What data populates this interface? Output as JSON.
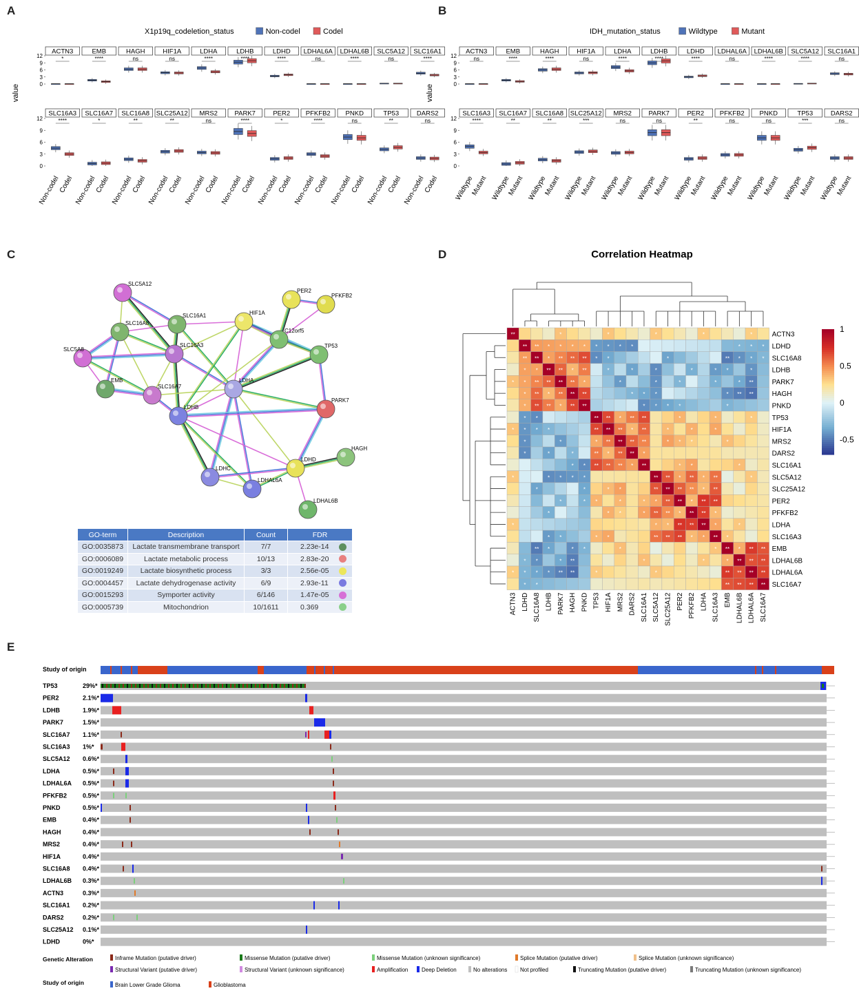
{
  "panel_labels": {
    "a": "A",
    "b": "B",
    "c": "C",
    "d": "D",
    "e": "E"
  },
  "colors": {
    "blue": "#4f73b8",
    "red": "#e05a5a",
    "heat_high": "#b2182b",
    "heat_mid": "#ffffbf",
    "heat_low": "#2c3b92"
  },
  "chart_data": [
    {
      "id": "A",
      "type": "box",
      "legend_title": "X1p19q_codeletion_status",
      "legend": [
        "Non-codel",
        "Codel"
      ],
      "groups": [
        "Non-codel",
        "Codel"
      ],
      "ylabel": "value",
      "ylim": [
        0,
        12
      ],
      "yticks": [
        "0",
        "3",
        "6",
        "9",
        "12"
      ],
      "facets": [
        {
          "gene": "ACTN3",
          "sig": "*",
          "m": [
            0.1,
            0.1
          ]
        },
        {
          "gene": "EMB",
          "sig": "****",
          "m": [
            1.6,
            1.0
          ]
        },
        {
          "gene": "HAGH",
          "sig": "ns",
          "m": [
            6.3,
            6.3
          ]
        },
        {
          "gene": "HIF1A",
          "sig": "ns",
          "m": [
            4.8,
            4.7
          ]
        },
        {
          "gene": "LDHA",
          "sig": "****",
          "m": [
            6.8,
            5.2
          ]
        },
        {
          "gene": "LDHB",
          "sig": "****",
          "m": [
            9.3,
            9.9
          ]
        },
        {
          "gene": "LDHD",
          "sig": "****",
          "m": [
            3.4,
            3.9
          ]
        },
        {
          "gene": "LDHAL6A",
          "sig": "ns",
          "m": [
            0.1,
            0.1
          ]
        },
        {
          "gene": "LDHAL6B",
          "sig": "****",
          "m": [
            0.1,
            0.1
          ]
        },
        {
          "gene": "SLC5A12",
          "sig": "ns",
          "m": [
            0.3,
            0.3
          ]
        },
        {
          "gene": "SLC16A1",
          "sig": "****",
          "m": [
            4.6,
            3.8
          ]
        },
        {
          "gene": "SLC16A3",
          "sig": "****",
          "m": [
            4.5,
            3.0
          ]
        },
        {
          "gene": "SLC16A7",
          "sig": "*",
          "m": [
            0.6,
            0.7
          ]
        },
        {
          "gene": "SLC16A8",
          "sig": "**",
          "m": [
            1.7,
            1.3
          ]
        },
        {
          "gene": "SLC25A12",
          "sig": "**",
          "m": [
            3.6,
            3.8
          ]
        },
        {
          "gene": "MRS2",
          "sig": "ns",
          "m": [
            3.4,
            3.3
          ]
        },
        {
          "gene": "PARK7",
          "sig": "****",
          "m": [
            8.7,
            8.2
          ]
        },
        {
          "gene": "PER2",
          "sig": "*",
          "m": [
            1.8,
            2.0
          ]
        },
        {
          "gene": "PFKFB2",
          "sig": "****",
          "m": [
            3.0,
            2.5
          ]
        },
        {
          "gene": "PNKD",
          "sig": "ns",
          "m": [
            7.3,
            7.1
          ]
        },
        {
          "gene": "TP53",
          "sig": "**",
          "m": [
            4.2,
            4.7
          ]
        },
        {
          "gene": "DARS2",
          "sig": "ns",
          "m": [
            2.0,
            1.9
          ]
        }
      ]
    },
    {
      "id": "B",
      "type": "box",
      "legend_title": "IDH_mutation_status",
      "legend": [
        "Wildtype",
        "Mutant"
      ],
      "groups": [
        "Wildtype",
        "Mutant"
      ],
      "ylabel": "value",
      "ylim": [
        0,
        12
      ],
      "yticks": [
        "0",
        "3",
        "6",
        "9",
        "12"
      ],
      "facets": [
        {
          "gene": "ACTN3",
          "sig": "ns",
          "m": [
            0.1,
            0.1
          ]
        },
        {
          "gene": "EMB",
          "sig": "****",
          "m": [
            1.6,
            1.1
          ]
        },
        {
          "gene": "HAGH",
          "sig": "****",
          "m": [
            6.0,
            6.3
          ]
        },
        {
          "gene": "HIF1A",
          "sig": "ns",
          "m": [
            4.7,
            4.8
          ]
        },
        {
          "gene": "LDHA",
          "sig": "****",
          "m": [
            7.2,
            5.6
          ]
        },
        {
          "gene": "LDHB",
          "sig": "****",
          "m": [
            9.0,
            9.8
          ]
        },
        {
          "gene": "LDHD",
          "sig": "****",
          "m": [
            3.0,
            3.5
          ]
        },
        {
          "gene": "LDHAL6A",
          "sig": "ns",
          "m": [
            0.1,
            0.1
          ]
        },
        {
          "gene": "LDHAL6B",
          "sig": "****",
          "m": [
            0.1,
            0.1
          ]
        },
        {
          "gene": "SLC5A12",
          "sig": "****",
          "m": [
            0.2,
            0.3
          ]
        },
        {
          "gene": "SLC16A1",
          "sig": "ns",
          "m": [
            4.4,
            4.2
          ]
        },
        {
          "gene": "SLC16A3",
          "sig": "****",
          "m": [
            4.9,
            3.4
          ]
        },
        {
          "gene": "SLC16A7",
          "sig": "**",
          "m": [
            0.5,
            0.8
          ]
        },
        {
          "gene": "SLC16A8",
          "sig": "**",
          "m": [
            1.6,
            1.3
          ]
        },
        {
          "gene": "SLC25A12",
          "sig": "***",
          "m": [
            3.5,
            3.7
          ]
        },
        {
          "gene": "MRS2",
          "sig": "ns",
          "m": [
            3.3,
            3.4
          ]
        },
        {
          "gene": "PARK7",
          "sig": "ns",
          "m": [
            8.4,
            8.4
          ]
        },
        {
          "gene": "PER2",
          "sig": "**",
          "m": [
            1.8,
            2.0
          ]
        },
        {
          "gene": "PFKFB2",
          "sig": "ns",
          "m": [
            2.8,
            2.8
          ]
        },
        {
          "gene": "PNKD",
          "sig": "ns",
          "m": [
            7.1,
            7.1
          ]
        },
        {
          "gene": "TP53",
          "sig": "***",
          "m": [
            4.1,
            4.6
          ]
        },
        {
          "gene": "DARS2",
          "sig": "ns",
          "m": [
            2.0,
            2.0
          ]
        }
      ]
    },
    {
      "id": "C",
      "type": "network",
      "nodes": [
        {
          "name": "SLC5A12",
          "color": "#d16fd4"
        },
        {
          "name": "PER2",
          "color": "#e8e25a"
        },
        {
          "name": "PFKFB2",
          "color": "#e0dc4f"
        },
        {
          "name": "SLC16A8",
          "color": "#7fb56e"
        },
        {
          "name": "SLC16A1",
          "color": "#7fb56e"
        },
        {
          "name": "HIF1A",
          "color": "#ece66a"
        },
        {
          "name": "C12orf5",
          "color": "#7fbf72"
        },
        {
          "name": "TP53",
          "color": "#7fbf72"
        },
        {
          "name": "SLC5A8",
          "color": "#d16fd4"
        },
        {
          "name": "SLC16A3",
          "color": "#b877d0"
        },
        {
          "name": "EMB",
          "color": "#6fa86b"
        },
        {
          "name": "SLC16A7",
          "color": "#c87acd"
        },
        {
          "name": "LDHA",
          "color": "#a9a7e3"
        },
        {
          "name": "PARK7",
          "color": "#e06868"
        },
        {
          "name": "LDHB",
          "color": "#7c82e0"
        },
        {
          "name": "HAGH",
          "color": "#8cc47c"
        },
        {
          "name": "LDHC",
          "color": "#8a8ae0"
        },
        {
          "name": "LDHD",
          "color": "#e8e25a"
        },
        {
          "name": "LDHAL6A",
          "color": "#7a7fe0"
        },
        {
          "name": "LDHAL6B",
          "color": "#6fb66b"
        }
      ],
      "edges": [
        [
          "SLC5A12",
          "SLC16A8"
        ],
        [
          "SLC5A12",
          "SLC16A1"
        ],
        [
          "SLC5A12",
          "SLC16A3"
        ],
        [
          "SLC16A8",
          "SLC16A1"
        ],
        [
          "SLC16A8",
          "SLC16A3"
        ],
        [
          "SLC16A8",
          "SLC5A8"
        ],
        [
          "SLC16A8",
          "SLC16A7"
        ],
        [
          "SLC16A8",
          "EMB"
        ],
        [
          "SLC16A1",
          "SLC16A3"
        ],
        [
          "SLC16A1",
          "HIF1A"
        ],
        [
          "SLC16A1",
          "LDHA"
        ],
        [
          "SLC16A3",
          "SLC5A8"
        ],
        [
          "SLC16A3",
          "SLC16A7"
        ],
        [
          "SLC16A3",
          "LDHA"
        ],
        [
          "SLC16A3",
          "LDHB"
        ],
        [
          "SLC5A8",
          "EMB"
        ],
        [
          "SLC5A8",
          "SLC16A7"
        ],
        [
          "EMB",
          "SLC16A7"
        ],
        [
          "SLC16A7",
          "LDHA"
        ],
        [
          "SLC16A7",
          "LDHB"
        ],
        [
          "HIF1A",
          "C12orf5"
        ],
        [
          "HIF1A",
          "LDHA"
        ],
        [
          "HIF1A",
          "LDHB"
        ],
        [
          "HIF1A",
          "TP53"
        ],
        [
          "HIF1A",
          "SLC16A3"
        ],
        [
          "PER2",
          "PFKFB2"
        ],
        [
          "PER2",
          "C12orf5"
        ],
        [
          "PFKFB2",
          "C12orf5"
        ],
        [
          "C12orf5",
          "TP53"
        ],
        [
          "C12orf5",
          "LDHA"
        ],
        [
          "C12orf5",
          "LDHB"
        ],
        [
          "TP53",
          "PARK7"
        ],
        [
          "TP53",
          "LDHA"
        ],
        [
          "LDHA",
          "LDHB"
        ],
        [
          "LDHA",
          "PARK7"
        ],
        [
          "LDHA",
          "LDHC"
        ],
        [
          "LDHA",
          "LDHD"
        ],
        [
          "LDHA",
          "LDHAL6A"
        ],
        [
          "LDHB",
          "LDHC"
        ],
        [
          "LDHB",
          "LDHD"
        ],
        [
          "LDHB",
          "LDHAL6A"
        ],
        [
          "LDHB",
          "PARK7"
        ],
        [
          "LDHC",
          "LDHAL6A"
        ],
        [
          "LDHC",
          "LDHD"
        ],
        [
          "LDHD",
          "HAGH"
        ],
        [
          "LDHD",
          "LDHAL6B"
        ],
        [
          "LDHD",
          "LDHAL6A"
        ],
        [
          "PARK7",
          "LDHD"
        ]
      ],
      "table": {
        "headers": [
          "GO-term",
          "Description",
          "Count",
          "FDR"
        ],
        "rows": [
          {
            "term": "GO:0035873",
            "desc": "Lactate transmembrane transport",
            "count": "7/7",
            "fdr": "2.23e-14",
            "color": "#5d8f5d"
          },
          {
            "term": "GO:0006089",
            "desc": "Lactate metabolic process",
            "count": "10/13",
            "fdr": "2.83e-20",
            "color": "#e88080"
          },
          {
            "term": "GO:0019249",
            "desc": "Lactate biosynthetic process",
            "count": "3/3",
            "fdr": "2.56e-05",
            "color": "#ece65a"
          },
          {
            "term": "GO:0004457",
            "desc": "Lactate dehydrogenase activity",
            "count": "6/9",
            "fdr": "2.93e-11",
            "color": "#7a7ae0"
          },
          {
            "term": "GO:0015293",
            "desc": "Symporter activity",
            "count": "6/146",
            "fdr": "1.47e-05",
            "color": "#d66fd6"
          },
          {
            "term": "GO:0005739",
            "desc": "Mitochondrion",
            "count": "10/1611",
            "fdr": "0.369",
            "color": "#8ad08a"
          }
        ]
      }
    },
    {
      "id": "D",
      "type": "heatmap",
      "title": "Correlation Heatmap",
      "genes": [
        "ACTN3",
        "LDHD",
        "SLC16A8",
        "LDHB",
        "PARK7",
        "HAGH",
        "PNKD",
        "TP53",
        "HIF1A",
        "MRS2",
        "DARS2",
        "SLC16A1",
        "SLC5A12",
        "SLC25A12",
        "PER2",
        "PFKFB2",
        "LDHA",
        "SLC16A3",
        "EMB",
        "LDHAL6B",
        "LDHAL6A",
        "SLC16A7"
      ],
      "clusters": [
        0,
        1,
        1,
        1,
        1,
        1,
        1,
        2,
        2,
        2,
        2,
        2,
        3,
        3,
        3,
        3,
        3,
        3,
        4,
        4,
        4,
        4
      ],
      "colorbar_ticks": [
        "1",
        "0.5",
        "0",
        "-0.5"
      ],
      "range": [
        -0.7,
        1
      ]
    },
    {
      "id": "E",
      "type": "oncoprint",
      "study_label": "Study of origin",
      "genes": [
        {
          "name": "TP53",
          "pct": "29%*"
        },
        {
          "name": "PER2",
          "pct": "2.1%*"
        },
        {
          "name": "LDHB",
          "pct": "1.9%*"
        },
        {
          "name": "PARK7",
          "pct": "1.5%*"
        },
        {
          "name": "SLC16A7",
          "pct": "1.1%*"
        },
        {
          "name": "SLC16A3",
          "pct": "1%*"
        },
        {
          "name": "SLC5A12",
          "pct": "0.6%*"
        },
        {
          "name": "LDHA",
          "pct": "0.5%*"
        },
        {
          "name": "LDHAL6A",
          "pct": "0.5%*"
        },
        {
          "name": "PFKFB2",
          "pct": "0.5%*"
        },
        {
          "name": "PNKD",
          "pct": "0.5%*"
        },
        {
          "name": "EMB",
          "pct": "0.4%*"
        },
        {
          "name": "HAGH",
          "pct": "0.4%*"
        },
        {
          "name": "MRS2",
          "pct": "0.4%*"
        },
        {
          "name": "HIF1A",
          "pct": "0.4%*"
        },
        {
          "name": "SLC16A8",
          "pct": "0.4%*"
        },
        {
          "name": "LDHAL6B",
          "pct": "0.3%*"
        },
        {
          "name": "ACTN3",
          "pct": "0.3%*"
        },
        {
          "name": "SLC16A1",
          "pct": "0.2%*"
        },
        {
          "name": "DARS2",
          "pct": "0.2%*"
        },
        {
          "name": "SLC25A12",
          "pct": "0.1%*"
        },
        {
          "name": "LDHD",
          "pct": "0%*"
        }
      ],
      "legend_genetic_title": "Genetic Alteration",
      "legend_genetic": [
        {
          "label": "Inframe Mutation (putative driver)",
          "color": "#8b2a1a"
        },
        {
          "label": "Missense Mutation (putative driver)",
          "color": "#1a7a1a"
        },
        {
          "label": "Missense Mutation (unknown significance)",
          "color": "#7cd07c"
        },
        {
          "label": "Splice Mutation (putative driver)",
          "color": "#e07a2a"
        },
        {
          "label": "Splice Mutation (unknown significance)",
          "color": "#f0c08a"
        },
        {
          "label": "Structural Variant (putative driver)",
          "color": "#7a2ab0"
        },
        {
          "label": "Structural Variant (unknown significance)",
          "color": "#d08ae0"
        },
        {
          "label": "Amplification",
          "color": "#e82020"
        },
        {
          "label": "Deep Deletion",
          "color": "#1a2ae8"
        },
        {
          "label": "No alterations",
          "color": "#bfbfbf"
        },
        {
          "label": "Not profiled",
          "color": "#ffffff"
        },
        {
          "label": "Truncating Mutation (putative driver)",
          "color": "#111111"
        },
        {
          "label": "Truncating Mutation (unknown significance)",
          "color": "#7a7a7a"
        }
      ],
      "legend_study_title": "Study of origin",
      "legend_study": [
        {
          "label": "Brain Lower Grade Glioma",
          "color": "#3a66cc"
        },
        {
          "label": "Glioblastoma",
          "color": "#d9411a"
        }
      ]
    }
  ]
}
